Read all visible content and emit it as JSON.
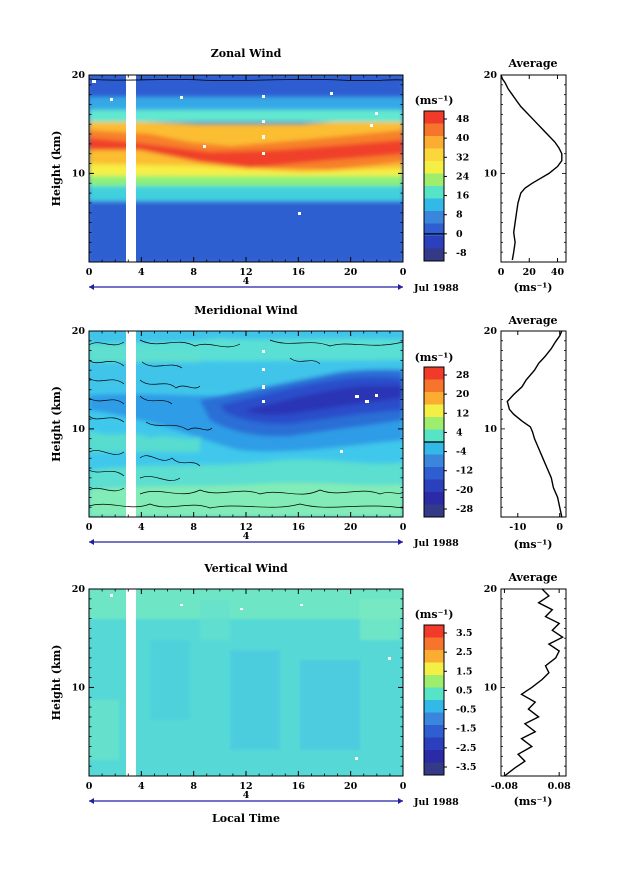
{
  "figure": {
    "date_label": "Jul 1988",
    "day_label": "4",
    "x_axis_label": "Local Time",
    "unit_label": "(ms⁻¹)",
    "profile_unit_label": "(ms⁻¹)"
  },
  "chart_data": [
    {
      "type": "heatmap",
      "title": "Zonal Wind",
      "xlabel": "",
      "ylabel": "Height (km)",
      "x_ticks": [
        "0",
        "4",
        "8",
        "12",
        "16",
        "20",
        "0"
      ],
      "y_ticks": [
        "10",
        "20"
      ],
      "xlim": [
        0,
        24
      ],
      "ylim": [
        1,
        20
      ],
      "colorbar": {
        "unit": "(ms⁻¹)",
        "ticks": [
          "48",
          "40",
          "32",
          "24",
          "16",
          "8",
          "0",
          "-8"
        ],
        "range": [
          -8,
          52
        ],
        "zero_contour": 0
      },
      "data_gap_hours": [
        3.2,
        3.6
      ],
      "profile_pattern": [
        [
          1,
          8
        ],
        [
          3,
          8
        ],
        [
          5,
          10
        ],
        [
          7,
          12
        ],
        [
          9,
          24
        ],
        [
          10,
          35
        ],
        [
          11,
          43
        ],
        [
          12,
          43
        ],
        [
          13,
          38
        ],
        [
          14,
          30
        ],
        [
          15,
          24
        ],
        [
          16,
          17
        ],
        [
          17,
          11
        ],
        [
          18,
          6
        ],
        [
          19,
          2
        ],
        [
          20,
          0
        ]
      ]
    },
    {
      "type": "line",
      "title": "Average",
      "xlabel": "(ms⁻¹)",
      "ylabel": "",
      "x_ticks": [
        "0",
        "20",
        "40"
      ],
      "y_ticks": [
        "10",
        "20"
      ],
      "xlim": [
        0,
        46
      ],
      "ylim": [
        1,
        20
      ],
      "x": [
        8,
        9,
        10,
        9,
        10,
        11,
        12,
        14,
        17,
        22,
        28,
        34,
        40,
        43,
        43,
        41,
        38,
        34,
        30,
        26,
        22,
        18,
        14,
        11,
        8,
        5,
        3,
        1,
        0
      ],
      "y": [
        1.2,
        2,
        3,
        4,
        5,
        6,
        7,
        8,
        8.5,
        9,
        9.5,
        10,
        10.7,
        11.3,
        12,
        12.6,
        13.2,
        13.8,
        14.4,
        15,
        15.6,
        16.2,
        16.8,
        17.4,
        18,
        18.6,
        19.2,
        19.6,
        20
      ]
    },
    {
      "type": "heatmap",
      "title": "Meridional Wind",
      "xlabel": "",
      "ylabel": "Height (km)",
      "x_ticks": [
        "0",
        "4",
        "8",
        "12",
        "16",
        "20",
        "0"
      ],
      "y_ticks": [
        "10",
        "20"
      ],
      "xlim": [
        0,
        24
      ],
      "ylim": [
        1,
        20
      ],
      "colorbar": {
        "unit": "(ms⁻¹)",
        "ticks": [
          "28",
          "20",
          "12",
          "4",
          "-4",
          "-12",
          "-20",
          "-28"
        ],
        "range": [
          -28,
          28
        ],
        "zero_contour": 0
      },
      "data_gap_hours": [
        3.2,
        3.6
      ]
    },
    {
      "type": "line",
      "title": "Average",
      "xlabel": "(ms⁻¹)",
      "ylabel": "",
      "x_ticks": [
        "-10",
        "0"
      ],
      "y_ticks": [
        "10",
        "20"
      ],
      "xlim": [
        -14,
        1.5
      ],
      "ylim": [
        1,
        20
      ],
      "x": [
        0.5,
        0,
        -0.5,
        -1.5,
        -2,
        -3,
        -4,
        -5,
        -6,
        -6.5,
        -7,
        -9,
        -11,
        -12,
        -12.5,
        -11,
        -9,
        -8,
        -6,
        -5,
        -3.5,
        -2,
        -1,
        0,
        0.5
      ],
      "y": [
        1,
        2,
        3,
        4,
        5,
        6,
        7,
        8,
        9,
        9.7,
        10.2,
        10.8,
        11.5,
        12,
        12.8,
        13.5,
        14.3,
        15,
        16,
        16.7,
        17.4,
        18.2,
        18.9,
        19.5,
        20
      ]
    },
    {
      "type": "heatmap",
      "title": "Vertical Wind",
      "xlabel": "Local Time",
      "ylabel": "Height (km)",
      "x_ticks": [
        "0",
        "4",
        "8",
        "12",
        "16",
        "20",
        "0"
      ],
      "y_ticks": [
        "10",
        "20"
      ],
      "xlim": [
        0,
        24
      ],
      "ylim": [
        1,
        20
      ],
      "colorbar": {
        "unit": "(ms⁻¹)",
        "ticks": [
          "3.5",
          "2.5",
          "1.5",
          "0.5",
          "-0.5",
          "-1.5",
          "-2.5",
          "-3.5"
        ],
        "range": [
          -4,
          4
        ]
      },
      "data_gap_hours": [
        3.2,
        3.6
      ]
    },
    {
      "type": "line",
      "title": "Average",
      "xlabel": "(ms⁻¹)",
      "ylabel": "",
      "x_ticks": [
        "-0.08",
        "0.08"
      ],
      "y_ticks": [
        "10",
        "20"
      ],
      "xlim": [
        -0.09,
        0.1
      ],
      "ylim": [
        1,
        20
      ],
      "x": [
        -0.08,
        -0.05,
        -0.02,
        -0.04,
        0.0,
        -0.03,
        0.01,
        -0.02,
        0.02,
        -0.01,
        0.01,
        -0.03,
        0.0,
        0.03,
        0.05,
        0.04,
        0.07,
        0.08,
        0.05,
        0.09,
        0.06,
        0.08,
        0.04,
        0.06,
        0.02,
        0.05,
        0.03
      ],
      "y": [
        1,
        1.8,
        2.5,
        3.2,
        4,
        4.8,
        5.5,
        6.3,
        7,
        7.8,
        8.5,
        9.3,
        10,
        10.8,
        11.5,
        12.2,
        13,
        13.7,
        14.4,
        15.1,
        15.8,
        16.5,
        17.2,
        17.9,
        18.6,
        19.3,
        20
      ]
    }
  ]
}
